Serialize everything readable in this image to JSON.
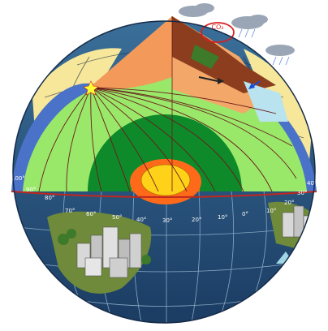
{
  "diagram": {
    "co2_label": "CO₂",
    "latitude_labels": [
      "100°",
      "90°",
      "80°",
      "70°",
      "60°",
      "50°",
      "40°",
      "30°",
      "20°",
      "10°",
      "0°",
      "10°",
      "20°",
      "30°",
      "40°"
    ],
    "colors": {
      "ocean": "#2f5f8a",
      "ocean_dark": "#1d3f66",
      "continent": "#f7e79a",
      "outer_core": "#ff6a1a",
      "inner_core": "#ffd21a",
      "lower_mantle": "#0f8a2a",
      "upper_mantle": "#99e86a",
      "crust_wedge": "#f39a5a",
      "boundary": "#c0281e",
      "star": "#ffff33"
    }
  }
}
